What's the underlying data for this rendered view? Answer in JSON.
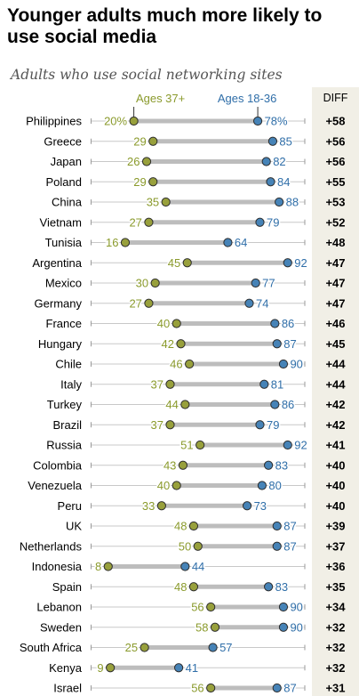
{
  "title": "Younger adults much more likely to use social media",
  "subtitle": "Adults who use social networking sites",
  "legend": {
    "older": "Ages 37+",
    "younger": "Ages 18-36",
    "diff_header": "DIFF"
  },
  "colors": {
    "older": "#98a03c",
    "younger": "#4683b7",
    "older_text": "#8a9a2c",
    "younger_text": "#2f6ea8",
    "bar": "#bdbdbd",
    "tick": "#c8c8c8",
    "diff_bg": "#f1efe6"
  },
  "chart_data": {
    "type": "dot-range",
    "title": "Younger adults much more likely to use social media",
    "subtitle": "Adults who use social networking sites",
    "x_range": [
      0,
      100
    ],
    "series": [
      {
        "name": "Ages 37+",
        "key": "older"
      },
      {
        "name": "Ages 18-36",
        "key": "younger"
      }
    ],
    "rows": [
      {
        "country": "Philippines",
        "older": 20,
        "younger": 78,
        "diff": "+58",
        "older_label": "20%",
        "younger_label": "78%"
      },
      {
        "country": "Greece",
        "older": 29,
        "younger": 85,
        "diff": "+56"
      },
      {
        "country": "Japan",
        "older": 26,
        "younger": 82,
        "diff": "+56"
      },
      {
        "country": "Poland",
        "older": 29,
        "younger": 84,
        "diff": "+55"
      },
      {
        "country": "China",
        "older": 35,
        "younger": 88,
        "diff": "+53"
      },
      {
        "country": "Vietnam",
        "older": 27,
        "younger": 79,
        "diff": "+52"
      },
      {
        "country": "Tunisia",
        "older": 16,
        "younger": 64,
        "diff": "+48"
      },
      {
        "country": "Argentina",
        "older": 45,
        "younger": 92,
        "diff": "+47"
      },
      {
        "country": "Mexico",
        "older": 30,
        "younger": 77,
        "diff": "+47"
      },
      {
        "country": "Germany",
        "older": 27,
        "younger": 74,
        "diff": "+47"
      },
      {
        "country": "France",
        "older": 40,
        "younger": 86,
        "diff": "+46"
      },
      {
        "country": "Hungary",
        "older": 42,
        "younger": 87,
        "diff": "+45"
      },
      {
        "country": "Chile",
        "older": 46,
        "younger": 90,
        "diff": "+44"
      },
      {
        "country": "Italy",
        "older": 37,
        "younger": 81,
        "diff": "+44"
      },
      {
        "country": "Turkey",
        "older": 44,
        "younger": 86,
        "diff": "+42"
      },
      {
        "country": "Brazil",
        "older": 37,
        "younger": 79,
        "diff": "+42"
      },
      {
        "country": "Russia",
        "older": 51,
        "younger": 92,
        "diff": "+41"
      },
      {
        "country": "Colombia",
        "older": 43,
        "younger": 83,
        "diff": "+40"
      },
      {
        "country": "Venezuela",
        "older": 40,
        "younger": 80,
        "diff": "+40"
      },
      {
        "country": "Peru",
        "older": 33,
        "younger": 73,
        "diff": "+40"
      },
      {
        "country": "UK",
        "older": 48,
        "younger": 87,
        "diff": "+39"
      },
      {
        "country": "Netherlands",
        "older": 50,
        "younger": 87,
        "diff": "+37"
      },
      {
        "country": "Indonesia",
        "older": 8,
        "younger": 44,
        "diff": "+36"
      },
      {
        "country": "Spain",
        "older": 48,
        "younger": 83,
        "diff": "+35"
      },
      {
        "country": "Lebanon",
        "older": 56,
        "younger": 90,
        "diff": "+34"
      },
      {
        "country": "Sweden",
        "older": 58,
        "younger": 90,
        "diff": "+32"
      },
      {
        "country": "South Africa",
        "older": 25,
        "younger": 57,
        "diff": "+32"
      },
      {
        "country": "Kenya",
        "older": 9,
        "younger": 41,
        "diff": "+32"
      },
      {
        "country": "Israel",
        "older": 56,
        "younger": 87,
        "diff": "+31"
      }
    ]
  }
}
